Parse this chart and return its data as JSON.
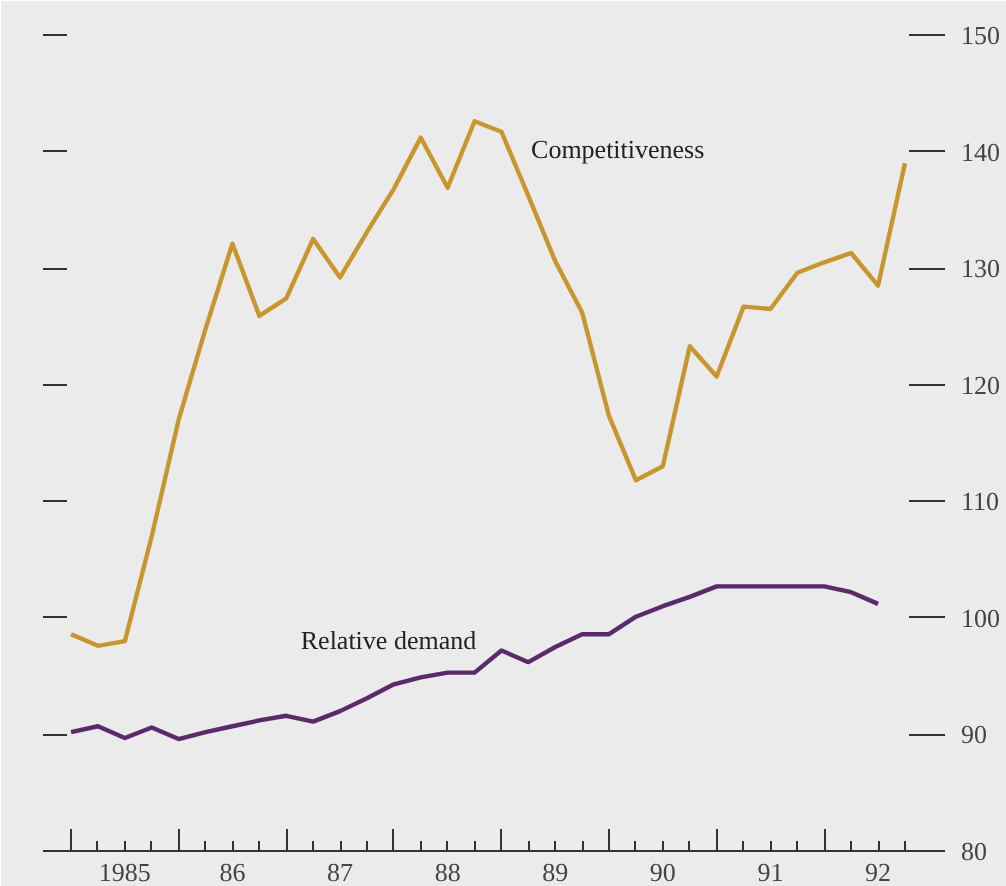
{
  "chart_data": {
    "type": "line",
    "legend": false,
    "marker": "none",
    "line_style": "solid",
    "grid": false,
    "categories": [
      null,
      null,
      "1985",
      null,
      null,
      null,
      "86",
      null,
      null,
      null,
      "87",
      null,
      null,
      null,
      "88",
      null,
      null,
      null,
      "89",
      null,
      null,
      null,
      "90",
      null,
      null,
      null,
      "91",
      null,
      null,
      null,
      "92",
      null
    ],
    "series": [
      {
        "name": "Competitiveness",
        "color": "#c8962e",
        "values": [
          98.6,
          97.6,
          98.0,
          107.0,
          117.0,
          124.8,
          132.1,
          125.9,
          127.4,
          132.5,
          129.2,
          133.1,
          136.8,
          141.2,
          136.9,
          142.6,
          141.7,
          136.2,
          130.6,
          126.2,
          117.3,
          111.8,
          113.0,
          123.3,
          120.7,
          126.7,
          126.5,
          129.6,
          130.5,
          131.3,
          128.5,
          139.0
        ]
      },
      {
        "name": "Relative demand",
        "color": "#5a2a6a",
        "values": [
          90.2,
          90.7,
          89.7,
          90.6,
          89.6,
          90.2,
          90.7,
          91.2,
          91.6,
          91.1,
          92.0,
          93.1,
          94.3,
          94.9,
          95.3,
          95.3,
          97.2,
          96.2,
          97.5,
          98.6,
          98.6,
          100.1,
          101.0,
          101.8,
          102.7,
          102.7,
          102.7,
          102.7,
          102.7,
          102.2,
          101.2,
          null
        ]
      }
    ],
    "ylim": [
      80,
      150
    ],
    "yticks": [
      80,
      90,
      100,
      110,
      120,
      130,
      140,
      150
    ]
  }
}
